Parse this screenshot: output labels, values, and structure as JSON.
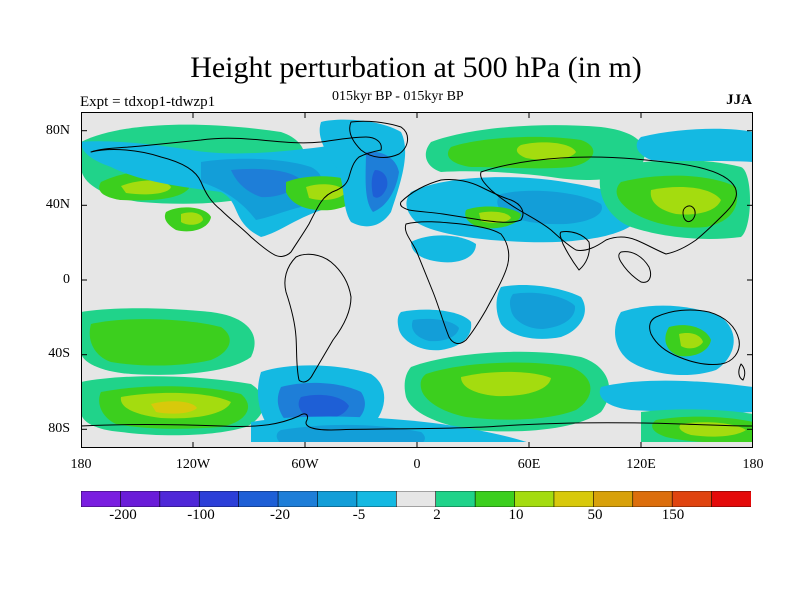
{
  "header": {
    "title": "Height perturbation at 500 hPa (in m)",
    "subtitle": "015kyr BP - 015kyr BP",
    "experiment": "Expt = tdxop1-tdwzp1",
    "season": "JJA"
  },
  "axes": {
    "lat_labels": [
      "80N",
      "40N",
      "0",
      "40S",
      "80S"
    ],
    "lon_labels": [
      "180",
      "120W",
      "60W",
      "0",
      "60E",
      "120E",
      "180"
    ]
  },
  "colorbar": {
    "colors": [
      "#7a1ee0",
      "#6a1cd8",
      "#4f28d8",
      "#2c3fd8",
      "#1e5fd6",
      "#1e7ed8",
      "#139ed8",
      "#14b9e2",
      "#e6e6e6",
      "#20d38a",
      "#3ccf1e",
      "#a4dc0f",
      "#d8c90b",
      "#d8a10a",
      "#dc6e0c",
      "#e0440f",
      "#e40a0a"
    ],
    "labels": [
      "-200",
      "-100",
      "-20",
      "-5",
      "2",
      "10",
      "50",
      "150"
    ]
  },
  "palette": {
    "land_outline": "#000000",
    "background_zero": "#e6e6e6"
  }
}
